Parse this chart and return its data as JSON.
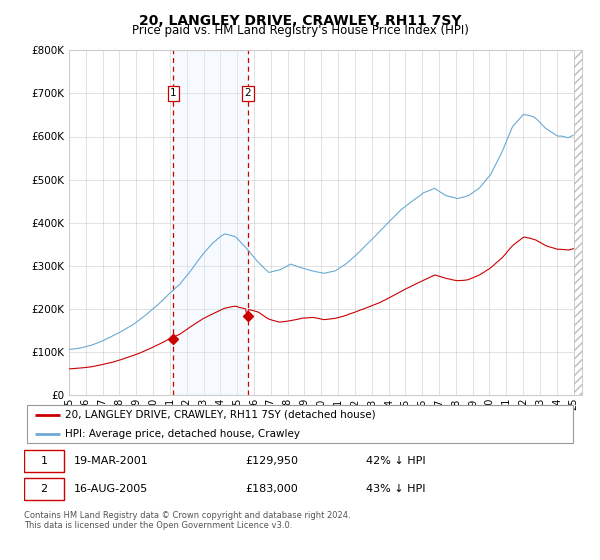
{
  "title": "20, LANGLEY DRIVE, CRAWLEY, RH11 7SY",
  "subtitle": "Price paid vs. HM Land Registry's House Price Index (HPI)",
  "legend_line1": "20, LANGLEY DRIVE, CRAWLEY, RH11 7SY (detached house)",
  "legend_line2": "HPI: Average price, detached house, Crawley",
  "transaction1_date": "19-MAR-2001",
  "transaction1_price": "£129,950",
  "transaction1_hpi": "42% ↓ HPI",
  "transaction2_date": "16-AUG-2005",
  "transaction2_price": "£183,000",
  "transaction2_hpi": "43% ↓ HPI",
  "footer": "Contains HM Land Registry data © Crown copyright and database right 2024.\nThis data is licensed under the Open Government Licence v3.0.",
  "red_color": "#cc0000",
  "blue_color": "#6aaad4",
  "shading_color": "#ddeeff",
  "ylim": [
    0,
    800000
  ],
  "yticks": [
    0,
    100000,
    200000,
    300000,
    400000,
    500000,
    600000,
    700000,
    800000
  ],
  "ytick_labels": [
    "£0",
    "£100K",
    "£200K",
    "£300K",
    "£400K",
    "£500K",
    "£600K",
    "£700K",
    "£800K"
  ]
}
